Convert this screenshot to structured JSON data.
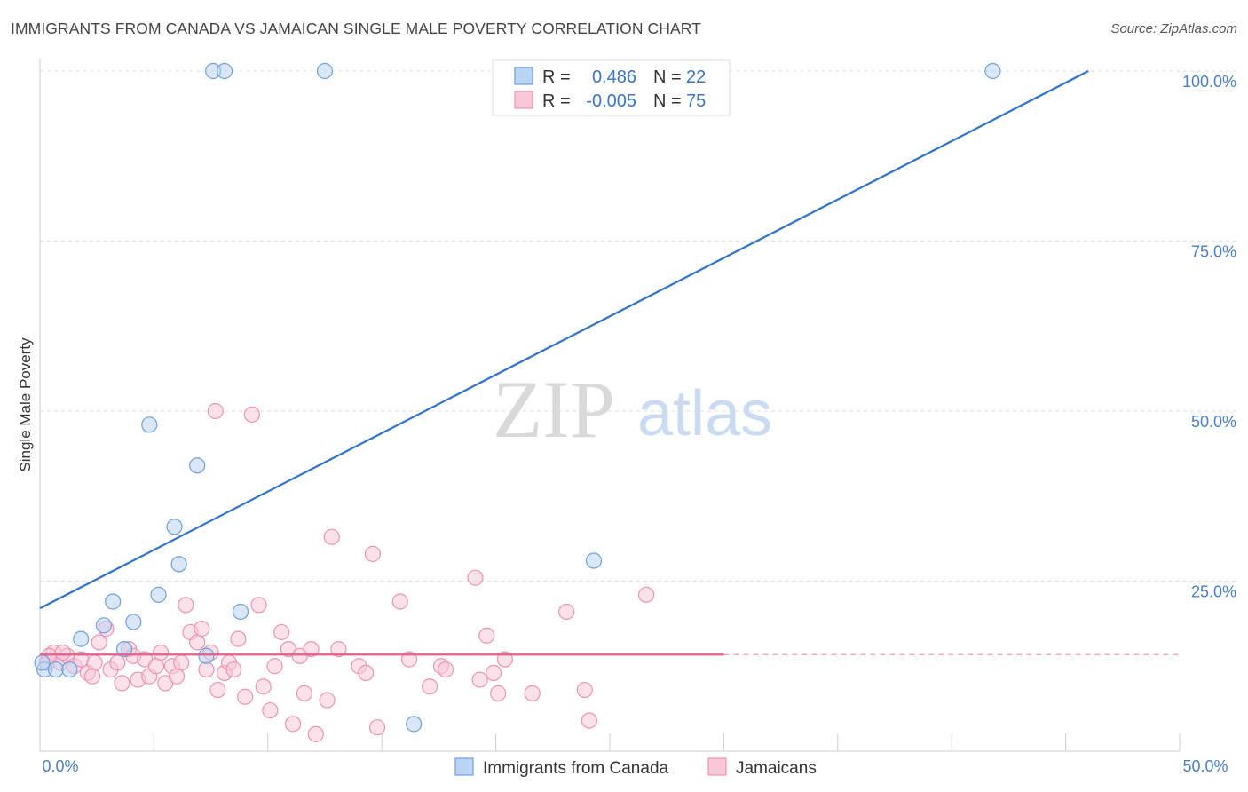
{
  "title": "IMMIGRANTS FROM CANADA VS JAMAICAN SINGLE MALE POVERTY CORRELATION CHART",
  "source": "Source: ZipAtlas.com",
  "watermark": {
    "zip": "ZIP",
    "atlas": "atlas"
  },
  "chart_data": {
    "type": "scatter",
    "ylabel": "Single Male Poverty",
    "xlim": [
      0,
      50
    ],
    "ylim": [
      0,
      100
    ],
    "x_tick_labels": [
      "0.0%",
      "50.0%"
    ],
    "y_ticks": [
      {
        "value": 25,
        "label": "25.0%"
      },
      {
        "value": 50,
        "label": "50.0%"
      },
      {
        "value": 75,
        "label": "75.0%"
      },
      {
        "value": 100,
        "label": "100.0%"
      }
    ],
    "grid": true,
    "legend_placement": "top-center",
    "series": [
      {
        "name": "Immigrants from Canada",
        "color": "#6ea0dc",
        "fill": "#bcd4f3",
        "stats": {
          "r_label": "R =",
          "r": "0.486",
          "n_label": "N =",
          "n": "22"
        },
        "trend": {
          "x": [
            0,
            46
          ],
          "y": [
            21,
            100
          ],
          "color": "#2f72c8",
          "dashed_extension": false
        },
        "points": [
          [
            0.2,
            12
          ],
          [
            0.7,
            12
          ],
          [
            1.3,
            12
          ],
          [
            1.8,
            16.5
          ],
          [
            2.8,
            18.5
          ],
          [
            3.2,
            22
          ],
          [
            4.1,
            19
          ],
          [
            3.7,
            15
          ],
          [
            4.8,
            48
          ],
          [
            5.2,
            23
          ],
          [
            5.9,
            33
          ],
          [
            6.1,
            27.5
          ],
          [
            6.9,
            42
          ],
          [
            7.3,
            14
          ],
          [
            8.8,
            20.5
          ],
          [
            7.6,
            100
          ],
          [
            8.1,
            100
          ],
          [
            12.5,
            100
          ],
          [
            16.4,
            4
          ],
          [
            24.3,
            28
          ],
          [
            41.8,
            100
          ],
          [
            0.1,
            13
          ]
        ]
      },
      {
        "name": "Jamaicans",
        "color": "#ee93b2",
        "fill": "#f8c8d9",
        "stats": {
          "r_label": "R =",
          "r": "-0.005",
          "n_label": "N =",
          "n": "75"
        },
        "trend": {
          "x": [
            0,
            30
          ],
          "y": [
            14.2,
            14.2
          ],
          "dash_to": 50,
          "color": "#e0608f"
        },
        "points": [
          [
            0.3,
            13
          ],
          [
            0.6,
            14.5
          ],
          [
            0.9,
            13
          ],
          [
            1.2,
            14
          ],
          [
            1.5,
            12.5
          ],
          [
            1.8,
            13.5
          ],
          [
            2.1,
            11.5
          ],
          [
            2.4,
            13
          ],
          [
            2.6,
            16
          ],
          [
            2.9,
            18
          ],
          [
            3.1,
            12
          ],
          [
            3.4,
            13
          ],
          [
            3.6,
            10
          ],
          [
            3.9,
            15
          ],
          [
            4.1,
            14
          ],
          [
            4.3,
            10.5
          ],
          [
            4.6,
            13.5
          ],
          [
            4.8,
            11
          ],
          [
            5.1,
            12.5
          ],
          [
            5.3,
            14.5
          ],
          [
            5.5,
            10
          ],
          [
            5.8,
            12.5
          ],
          [
            6.0,
            11
          ],
          [
            6.2,
            13
          ],
          [
            6.4,
            21.5
          ],
          [
            6.6,
            17.5
          ],
          [
            6.9,
            16
          ],
          [
            7.1,
            18
          ],
          [
            7.3,
            12
          ],
          [
            7.5,
            14.5
          ],
          [
            7.7,
            50
          ],
          [
            7.8,
            9
          ],
          [
            8.1,
            11.5
          ],
          [
            8.3,
            13
          ],
          [
            8.5,
            12
          ],
          [
            8.7,
            16.5
          ],
          [
            9.0,
            8
          ],
          [
            9.3,
            49.5
          ],
          [
            9.6,
            21.5
          ],
          [
            9.8,
            9.5
          ],
          [
            10.1,
            6
          ],
          [
            10.3,
            12.5
          ],
          [
            10.6,
            17.5
          ],
          [
            10.9,
            15
          ],
          [
            11.1,
            4
          ],
          [
            11.4,
            14
          ],
          [
            11.6,
            8.5
          ],
          [
            11.9,
            15
          ],
          [
            12.1,
            2.5
          ],
          [
            12.6,
            7.5
          ],
          [
            12.8,
            31.5
          ],
          [
            13.1,
            15
          ],
          [
            14.0,
            12.5
          ],
          [
            14.3,
            11.5
          ],
          [
            14.6,
            29
          ],
          [
            14.8,
            3.5
          ],
          [
            15.8,
            22
          ],
          [
            16.2,
            13.5
          ],
          [
            17.1,
            9.5
          ],
          [
            17.6,
            12.5
          ],
          [
            17.8,
            12
          ],
          [
            19.1,
            25.5
          ],
          [
            19.3,
            10.5
          ],
          [
            19.6,
            17
          ],
          [
            19.9,
            11.5
          ],
          [
            20.1,
            8.5
          ],
          [
            20.4,
            13.5
          ],
          [
            21.6,
            8.5
          ],
          [
            23.1,
            20.5
          ],
          [
            23.9,
            9
          ],
          [
            24.1,
            4.5
          ],
          [
            26.6,
            23
          ],
          [
            0.4,
            14
          ],
          [
            1.0,
            14.5
          ],
          [
            2.3,
            11
          ]
        ]
      }
    ]
  }
}
